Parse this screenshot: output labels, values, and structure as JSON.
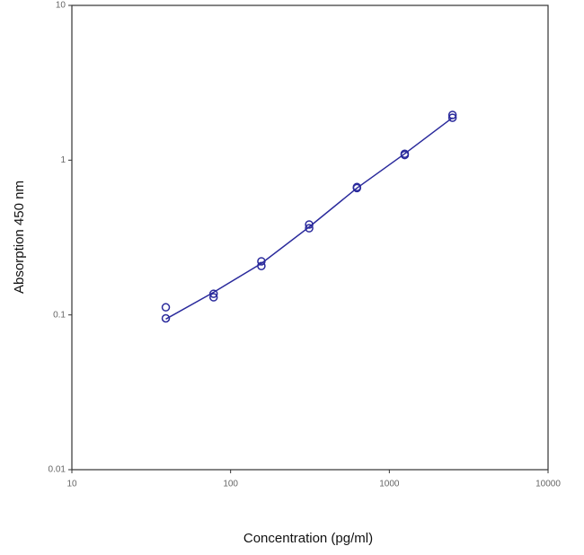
{
  "chart_data": {
    "type": "scatter",
    "x_label": "Concentration (pg/ml)",
    "y_label": "Absorption 450 nm",
    "x": [
      39.06,
      78.13,
      156.25,
      312.5,
      625,
      1250,
      2500
    ],
    "series": [
      {
        "style": "markers",
        "color": "#2a2a9c",
        "values": [
          0.112,
          0.137,
          0.222,
          0.384,
          0.67,
          1.1,
          1.96
        ]
      },
      {
        "style": "markers",
        "color": "#2a2a9c",
        "values": [
          0.095,
          0.13,
          0.207,
          0.363,
          0.66,
          1.08,
          1.88
        ]
      },
      {
        "style": "line",
        "color": "#2a2a9c",
        "values": [
          0.094,
          0.14,
          0.215,
          0.37,
          0.66,
          1.1,
          1.88
        ]
      }
    ],
    "xlim": [
      10,
      10000
    ],
    "ylim": [
      0.01,
      10
    ],
    "xticks": [
      10,
      100,
      1000,
      10000
    ],
    "yticks": [
      0.01,
      0.1,
      1,
      10
    ],
    "xscale": "log",
    "yscale": "log"
  }
}
